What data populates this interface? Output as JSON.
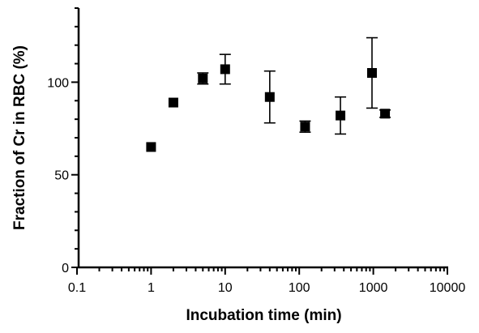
{
  "chart_data": {
    "type": "scatter",
    "title": "",
    "xlabel": "Incubation time (min)",
    "ylabel": "Fraction of Cr in RBC (%)",
    "x_scale": "log",
    "xlim": [
      0.1,
      10000
    ],
    "ylim": [
      0,
      140
    ],
    "x_ticks": [
      {
        "value": 0.1,
        "label": "0.1"
      },
      {
        "value": 1,
        "label": "1"
      },
      {
        "value": 10,
        "label": "10"
      },
      {
        "value": 100,
        "label": "100"
      },
      {
        "value": 1000,
        "label": "1000"
      },
      {
        "value": 10000,
        "label": "10000"
      }
    ],
    "y_ticks": [
      {
        "value": 0,
        "label": "0"
      },
      {
        "value": 50,
        "label": "50"
      },
      {
        "value": 100,
        "label": "100"
      }
    ],
    "y_minor_step": 10,
    "grid": false,
    "marker": "square",
    "color": "#000000",
    "series": [
      {
        "points": [
          {
            "x": 1,
            "y": 65,
            "err": 0
          },
          {
            "x": 2,
            "y": 89,
            "err": 0
          },
          {
            "x": 5,
            "y": 102,
            "err": 3
          },
          {
            "x": 10,
            "y": 107,
            "err": 8
          },
          {
            "x": 40,
            "y": 92,
            "err": 14
          },
          {
            "x": 120,
            "y": 76,
            "err": 3
          },
          {
            "x": 360,
            "y": 82,
            "err": 10
          },
          {
            "x": 960,
            "y": 105,
            "err": 19
          },
          {
            "x": 1440,
            "y": 83,
            "err": 2
          }
        ]
      }
    ]
  }
}
